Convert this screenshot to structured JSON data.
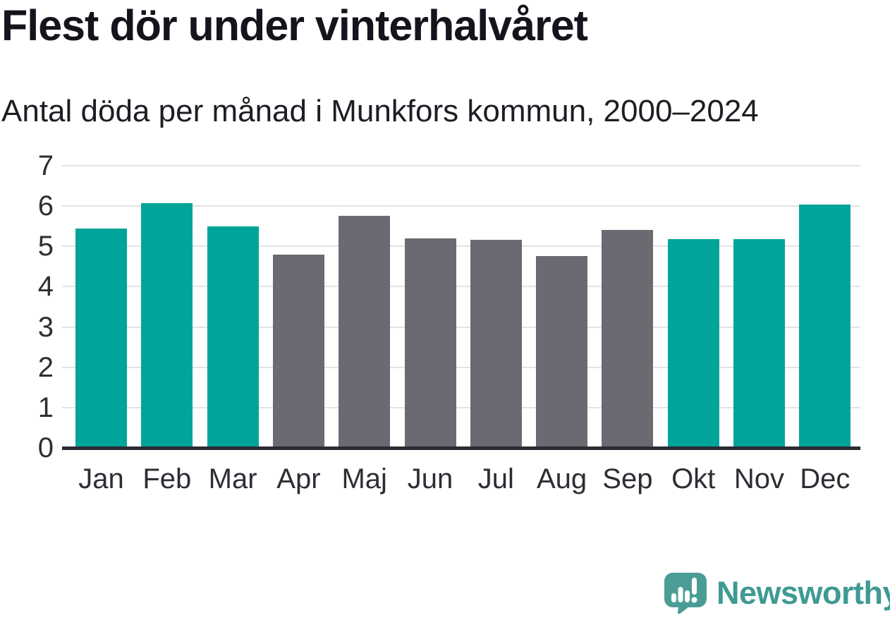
{
  "title": "Flest dör under vinterhalvåret",
  "subtitle": "Antal döda per månad i Munkfors kommun, 2000–2024",
  "branding": {
    "logo_text": "Newsworthy",
    "icon": "newsworthy-speech-bubble-barchart-icon",
    "icon_color": "#4a9d95",
    "text_color": "#3e9a93"
  },
  "chart_data": {
    "type": "bar",
    "title": "Flest dör under vinterhalvåret",
    "subtitle": "Antal döda per månad i Munkfors kommun, 2000–2024",
    "categories": [
      "Jan",
      "Feb",
      "Mar",
      "Apr",
      "Maj",
      "Jun",
      "Jul",
      "Aug",
      "Sep",
      "Okt",
      "Nov",
      "Dec"
    ],
    "values": [
      5.44,
      6.08,
      5.49,
      4.8,
      5.76,
      5.2,
      5.16,
      4.76,
      5.4,
      5.18,
      5.18,
      6.04
    ],
    "highlighted": [
      true,
      true,
      true,
      false,
      false,
      false,
      false,
      false,
      false,
      true,
      true,
      true
    ],
    "colors": {
      "highlight": "#00a49a",
      "default": "#6b6a72"
    },
    "xlabel": "",
    "ylabel": "",
    "ylim": [
      0,
      7
    ],
    "yticks": [
      0,
      1,
      2,
      3,
      4,
      5,
      6,
      7
    ],
    "grid": true,
    "legend": false
  }
}
